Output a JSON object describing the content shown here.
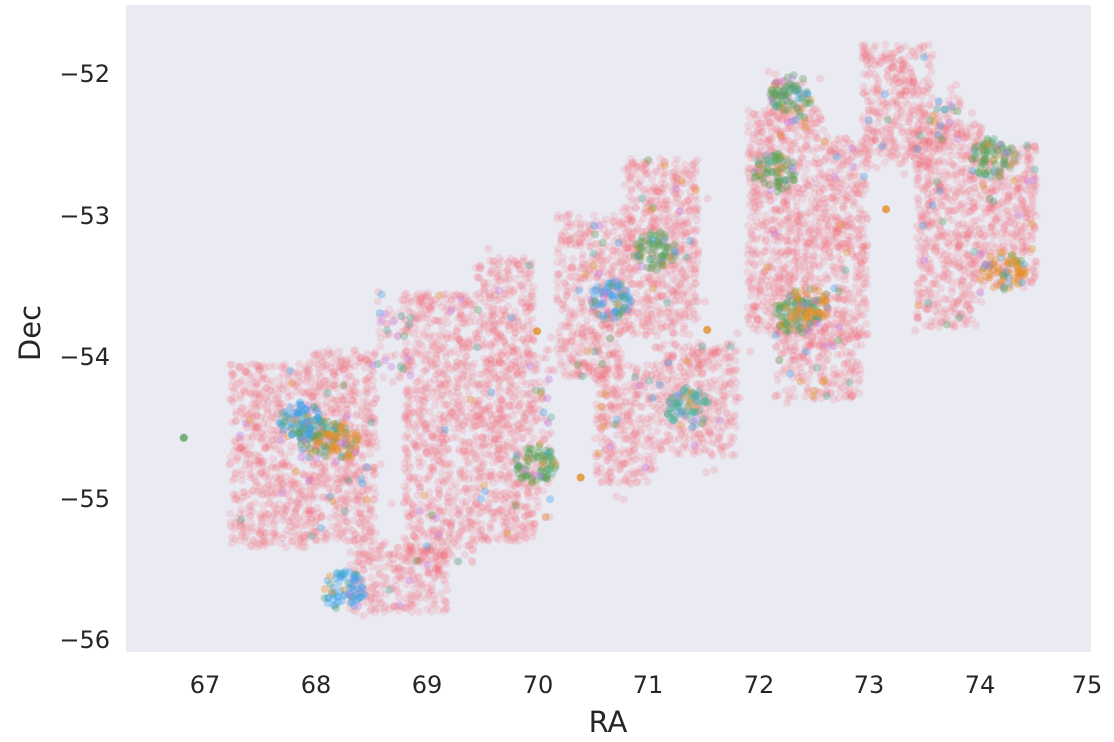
{
  "chart_data": {
    "type": "scatter",
    "title": "",
    "xlabel": "RA",
    "ylabel": "Dec",
    "xlim": [
      66.15,
      75
    ],
    "ylim": [
      -56.13,
      -51.57
    ],
    "xticks": [
      "67",
      "68",
      "69",
      "70",
      "71",
      "72",
      "73",
      "74",
      "75"
    ],
    "yticks": [
      "−52",
      "−53",
      "−54",
      "−55",
      "−56"
    ],
    "grid": false,
    "background": "#eaeaf2",
    "dominant_color": "#f36777",
    "accent_colors": [
      "#5aa35a",
      "#3ba3ec",
      "#e58e26",
      "#c77ce8",
      "#4bb39b"
    ],
    "regions": [
      {
        "ra": [
          67.1,
          67.8
        ],
        "dec": [
          -55.4,
          -54.1
        ],
        "density": 0.9
      },
      {
        "ra": [
          67.8,
          68.45
        ],
        "dec": [
          -55.35,
          -54.0
        ],
        "density": 1.0
      },
      {
        "ra": [
          68.45,
          68.75
        ],
        "dec": [
          -54.2,
          -53.6
        ],
        "density": 0.3
      },
      {
        "ra": [
          68.7,
          69.35
        ],
        "dec": [
          -55.5,
          -53.6
        ],
        "density": 0.9
      },
      {
        "ra": [
          69.35,
          69.9
        ],
        "dec": [
          -55.35,
          -53.35
        ],
        "density": 1.0
      },
      {
        "ra": [
          69.9,
          70.05
        ],
        "dec": [
          -55.2,
          -54.0
        ],
        "density": 0.4
      },
      {
        "ra": [
          68.2,
          69.1
        ],
        "dec": [
          -55.85,
          -55.35
        ],
        "density": 0.9
      },
      {
        "ra": [
          70.1,
          70.7
        ],
        "dec": [
          -54.2,
          -53.05
        ],
        "density": 0.9
      },
      {
        "ra": [
          70.7,
          71.4
        ],
        "dec": [
          -53.9,
          -52.65
        ],
        "density": 1.0
      },
      {
        "ra": [
          70.45,
          71.0
        ],
        "dec": [
          -54.95,
          -54.1
        ],
        "density": 0.9
      },
      {
        "ra": [
          71.0,
          71.75
        ],
        "dec": [
          -54.75,
          -53.95
        ],
        "density": 0.9
      },
      {
        "ra": [
          71.85,
          72.55
        ],
        "dec": [
          -53.9,
          -52.3
        ],
        "density": 1.0
      },
      {
        "ra": [
          72.05,
          72.4
        ],
        "dec": [
          -52.4,
          -52.1
        ],
        "density": 0.5
      },
      {
        "ra": [
          72.55,
          72.95
        ],
        "dec": [
          -53.95,
          -52.5
        ],
        "density": 1.0
      },
      {
        "ra": [
          72.1,
          72.9
        ],
        "dec": [
          -54.35,
          -53.85
        ],
        "density": 0.8
      },
      {
        "ra": [
          72.9,
          73.55
        ],
        "dec": [
          -52.7,
          -51.85
        ],
        "density": 1.0
      },
      {
        "ra": [
          73.4,
          74.0
        ],
        "dec": [
          -53.85,
          -52.4
        ],
        "density": 1.0
      },
      {
        "ra": [
          74.0,
          74.5
        ],
        "dec": [
          -53.55,
          -52.55
        ],
        "density": 1.0
      },
      {
        "ra": [
          73.55,
          73.8
        ],
        "dec": [
          -52.55,
          -52.2
        ],
        "density": 0.5
      }
    ],
    "clusters": [
      {
        "ra": 67.9,
        "dec": -54.6,
        "color_index": 0
      },
      {
        "ra": 67.75,
        "dec": -54.5,
        "color_index": 1
      },
      {
        "ra": 68.1,
        "dec": -54.65,
        "color_index": 2
      },
      {
        "ra": 71.0,
        "dec": -53.3,
        "color_index": 0
      },
      {
        "ra": 70.6,
        "dec": -53.65,
        "color_index": 1
      },
      {
        "ra": 72.3,
        "dec": -53.75,
        "color_index": 0
      },
      {
        "ra": 72.4,
        "dec": -53.7,
        "color_index": 2
      },
      {
        "ra": 72.1,
        "dec": -52.75,
        "color_index": 0
      },
      {
        "ra": 72.25,
        "dec": -52.2,
        "color_index": 0
      },
      {
        "ra": 74.1,
        "dec": -52.65,
        "color_index": 0
      },
      {
        "ra": 74.2,
        "dec": -53.45,
        "color_index": 2
      },
      {
        "ra": 71.3,
        "dec": -54.4,
        "color_index": 4
      },
      {
        "ra": 69.9,
        "dec": -54.8,
        "color_index": 0
      },
      {
        "ra": 68.15,
        "dec": -55.7,
        "color_index": 1
      }
    ]
  }
}
